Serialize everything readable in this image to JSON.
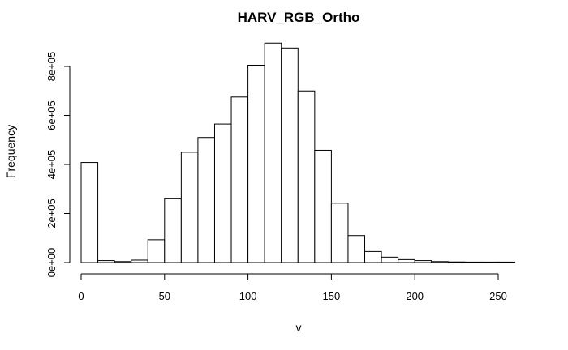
{
  "chart_data": {
    "type": "bar",
    "title": "HARV_RGB_Ortho",
    "xlabel": "v",
    "ylabel": "Frequency",
    "bin_width": 10,
    "bin_starts": [
      0,
      10,
      20,
      30,
      40,
      50,
      60,
      70,
      80,
      90,
      100,
      110,
      120,
      130,
      140,
      150,
      160,
      170,
      180,
      190,
      200,
      210,
      220,
      230,
      240,
      250
    ],
    "values": [
      408000,
      8000,
      4000,
      10000,
      93000,
      260000,
      450000,
      510000,
      565000,
      675000,
      805000,
      895000,
      875000,
      700000,
      458000,
      242000,
      110000,
      45000,
      22000,
      12000,
      8000,
      4000,
      2500,
      500,
      300,
      200
    ],
    "xlim": [
      0,
      260
    ],
    "ylim": [
      0,
      800000
    ],
    "x_ticks": [
      0,
      50,
      100,
      150,
      200,
      250
    ],
    "x_tick_labels": [
      "0",
      "50",
      "100",
      "150",
      "200",
      "250"
    ],
    "y_ticks": [
      0,
      200000,
      400000,
      600000,
      800000
    ],
    "y_tick_labels": [
      "0e+00",
      "2e+05",
      "4e+05",
      "6e+05",
      "8e+05"
    ],
    "grid": false,
    "legend": "none"
  }
}
